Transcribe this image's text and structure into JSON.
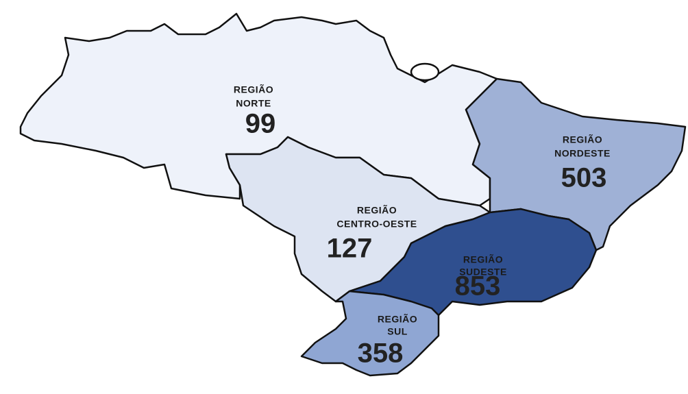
{
  "regions": [
    {
      "label_lines": [
        "REGIÃO",
        "NORTE"
      ],
      "value": 99,
      "color": "#eef2fa"
    },
    {
      "label_lines": [
        "REGIÃO",
        "CENTRO-OESTE"
      ],
      "value": 127,
      "color": "#dde4f2"
    },
    {
      "label_lines": [
        "REGIÃO",
        "NORDESTE"
      ],
      "value": 503,
      "color": "#9fb1d6"
    },
    {
      "label_lines": [
        "REGIÃO",
        "SUDESTE"
      ],
      "value": 853,
      "color": "#2f4f8f"
    },
    {
      "label_lines": [
        "REGIÃO",
        "SUL"
      ],
      "value": 358,
      "color": "#8fa6d3"
    }
  ]
}
